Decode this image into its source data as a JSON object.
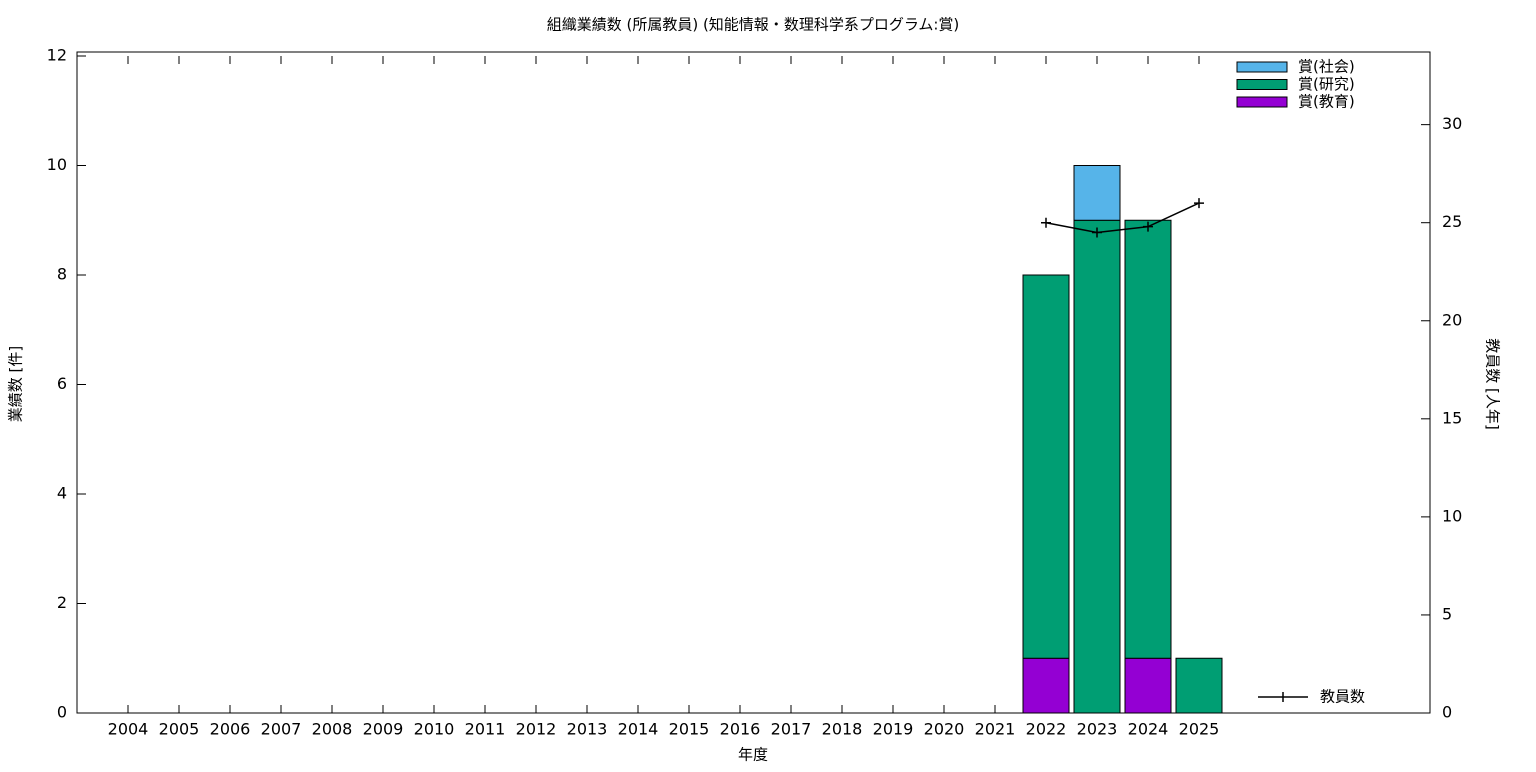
{
  "chart_data": {
    "type": "stacked_bar_line",
    "title": "組織業績数 (所属教員) (知能情報・数理科学系プログラム:賞)",
    "xlabel": "年度",
    "ylabel": "業績数 [件]",
    "y2label": "教員数 [人年]",
    "categories": [
      "2004",
      "2005",
      "2006",
      "2007",
      "2008",
      "2009",
      "2010",
      "2011",
      "2012",
      "2013",
      "2014",
      "2015",
      "2016",
      "2017",
      "2018",
      "2019",
      "2020",
      "2021",
      "2022",
      "2023",
      "2024",
      "2025"
    ],
    "series": [
      {
        "name": "賞(教育)",
        "color": "#9400d3",
        "values": [
          0,
          0,
          0,
          0,
          0,
          0,
          0,
          0,
          0,
          0,
          0,
          0,
          0,
          0,
          0,
          0,
          0,
          0,
          1,
          0,
          1,
          0
        ]
      },
      {
        "name": "賞(研究)",
        "color": "#009e73",
        "values": [
          0,
          0,
          0,
          0,
          0,
          0,
          0,
          0,
          0,
          0,
          0,
          0,
          0,
          0,
          0,
          0,
          0,
          0,
          7,
          9,
          8,
          1
        ]
      },
      {
        "name": "賞(社会)",
        "color": "#56b4e9",
        "values": [
          0,
          0,
          0,
          0,
          0,
          0,
          0,
          0,
          0,
          0,
          0,
          0,
          0,
          0,
          0,
          0,
          0,
          0,
          0,
          1,
          0,
          0
        ]
      },
      {
        "name": "教員数",
        "color": "#000000",
        "axis": "y2",
        "type": "line",
        "values": [
          null,
          null,
          null,
          null,
          null,
          null,
          null,
          null,
          null,
          null,
          null,
          null,
          null,
          null,
          null,
          null,
          null,
          null,
          25,
          24.5,
          24.8,
          26
        ]
      }
    ],
    "ylim": [
      0,
      12
    ],
    "yticks": [
      0,
      2,
      4,
      6,
      8,
      10,
      12
    ],
    "y2lim": [
      0,
      33.5
    ],
    "y2ticks": [
      0,
      5,
      10,
      15,
      20,
      25,
      30
    ]
  }
}
